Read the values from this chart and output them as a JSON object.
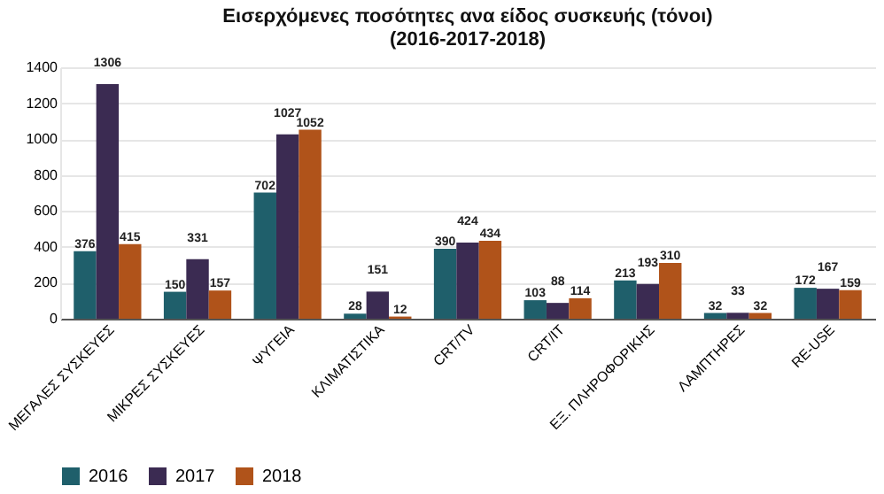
{
  "chart_data": {
    "type": "bar",
    "title": [
      "Εισερχόμενες ποσότητες ανα είδος συσκευής (τόνοι)",
      "(2016-2017-2018)"
    ],
    "categories": [
      "ΜΕΓΑΛΕΣ ΣΥΣΚΕΥΕΣ",
      "ΜΙΚΡΕΣ ΣΥΣΚΕΥΕΣ",
      "ΨΥΓΕΙΑ",
      "ΚΛΙΜΑΤΙΣΤΙΚΑ",
      "CRT/TV",
      "CRT/IT",
      "ΕΞ. ΠΛΗΡΟΦΟΡΙΚΗΣ",
      "ΛΑΜΠΤΗΡΕΣ",
      "RE-USE"
    ],
    "series": [
      {
        "name": "2016",
        "color": "#1f5f6b",
        "values": [
          376,
          150,
          702,
          28,
          390,
          103,
          213,
          32,
          172
        ]
      },
      {
        "name": "2017",
        "color": "#3b2b52",
        "values": [
          1306,
          331,
          1027,
          151,
          424,
          88,
          193,
          33,
          167
        ]
      },
      {
        "name": "2018",
        "color": "#b0531a",
        "values": [
          415,
          157,
          1052,
          12,
          434,
          114,
          310,
          32,
          159
        ]
      }
    ],
    "ylim": [
      0,
      1400
    ],
    "yticks": [
      0,
      200,
      400,
      600,
      800,
      1000,
      1200,
      1400
    ],
    "grid": "y",
    "legend": "bottom",
    "data_labels": true
  }
}
